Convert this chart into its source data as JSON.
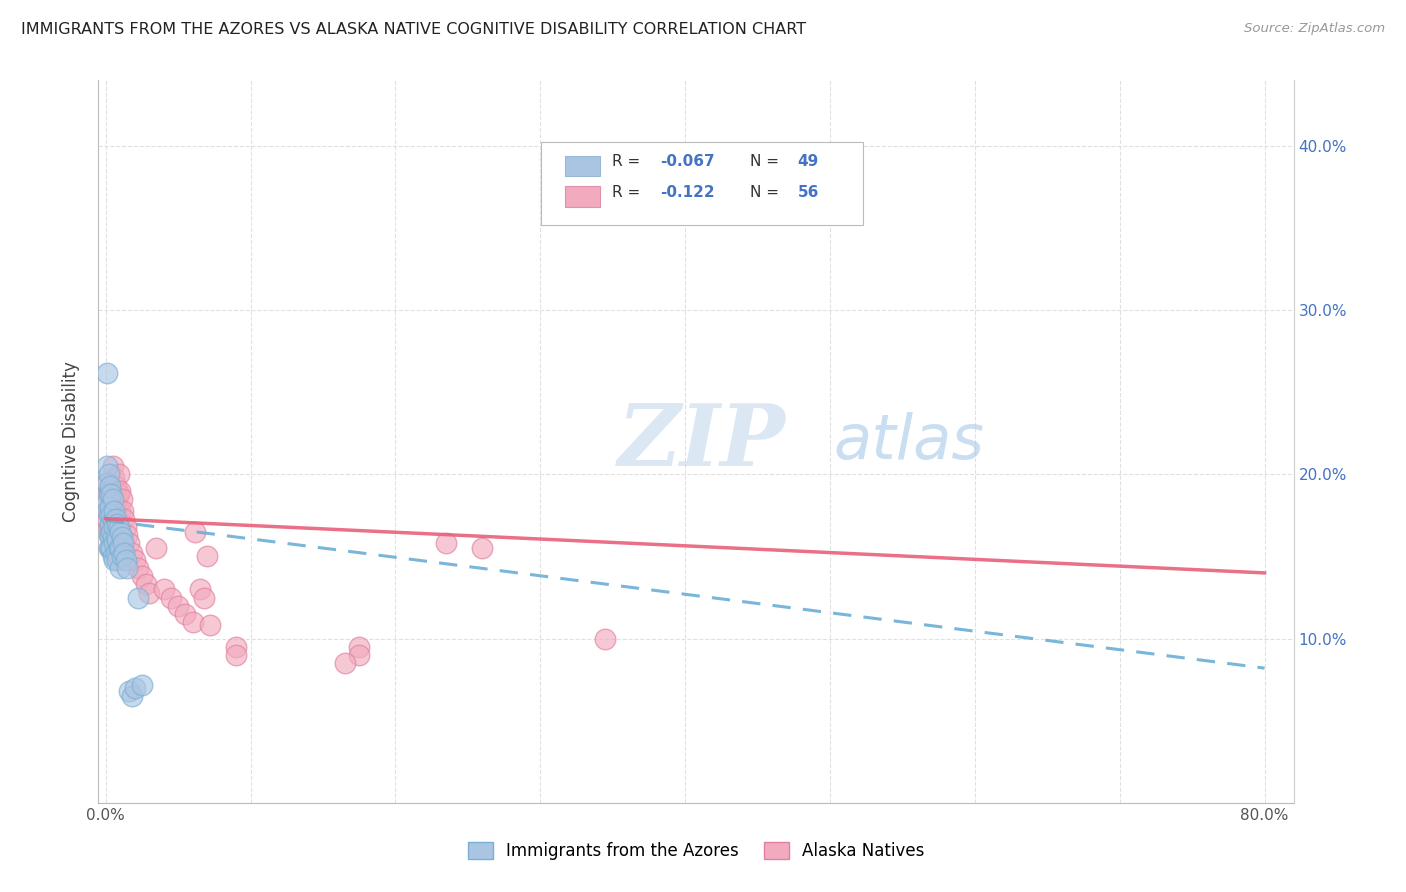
{
  "title": "IMMIGRANTS FROM THE AZORES VS ALASKA NATIVE COGNITIVE DISABILITY CORRELATION CHART",
  "source": "Source: ZipAtlas.com",
  "xlabel": "",
  "ylabel": "Cognitive Disability",
  "xlim": [
    -0.005,
    0.82
  ],
  "ylim": [
    0.0,
    0.44
  ],
  "xticks": [
    0.0,
    0.1,
    0.2,
    0.3,
    0.4,
    0.5,
    0.6,
    0.7,
    0.8
  ],
  "xticklabels": [
    "0.0%",
    "",
    "",
    "",
    "",
    "",
    "",
    "",
    "80.0%"
  ],
  "yticks": [
    0.0,
    0.1,
    0.2,
    0.3,
    0.4
  ],
  "yticklabels": [
    "",
    "",
    "",
    "",
    ""
  ],
  "right_yticks": [
    0.1,
    0.2,
    0.3,
    0.4
  ],
  "right_yticklabels": [
    "10.0%",
    "20.0%",
    "30.0%",
    "40.0%"
  ],
  "series1_color": "#aac5e2",
  "series2_color": "#f2abbe",
  "series1_edge": "#7aafd4",
  "series2_edge": "#e080a0",
  "trend1_color": "#6baed6",
  "trend2_color": "#e8607a",
  "watermark_zip": "ZIP",
  "watermark_atlas": "atlas",
  "watermark_zip_color": "#c5d8ee",
  "watermark_atlas_color": "#a8c8e8",
  "series1_label": "Immigrants from the Azores",
  "series2_label": "Alaska Natives",
  "legend_color": "#4472c4",
  "blue_scatter_x": [
    0.001,
    0.001,
    0.001,
    0.001,
    0.001,
    0.002,
    0.002,
    0.002,
    0.002,
    0.002,
    0.003,
    0.003,
    0.003,
    0.003,
    0.003,
    0.004,
    0.004,
    0.004,
    0.004,
    0.005,
    0.005,
    0.005,
    0.005,
    0.006,
    0.006,
    0.006,
    0.006,
    0.007,
    0.007,
    0.007,
    0.008,
    0.008,
    0.008,
    0.009,
    0.009,
    0.01,
    0.01,
    0.01,
    0.011,
    0.011,
    0.012,
    0.013,
    0.014,
    0.015,
    0.016,
    0.018,
    0.02,
    0.022,
    0.025
  ],
  "blue_scatter_y": [
    0.262,
    0.205,
    0.195,
    0.183,
    0.178,
    0.2,
    0.188,
    0.175,
    0.163,
    0.155,
    0.193,
    0.18,
    0.17,
    0.162,
    0.155,
    0.188,
    0.175,
    0.165,
    0.155,
    0.185,
    0.172,
    0.162,
    0.15,
    0.178,
    0.168,
    0.158,
    0.148,
    0.173,
    0.162,
    0.152,
    0.17,
    0.16,
    0.148,
    0.168,
    0.155,
    0.165,
    0.155,
    0.143,
    0.162,
    0.15,
    0.158,
    0.152,
    0.148,
    0.143,
    0.068,
    0.065,
    0.07,
    0.125,
    0.072
  ],
  "pink_scatter_x": [
    0.001,
    0.001,
    0.001,
    0.002,
    0.002,
    0.002,
    0.003,
    0.003,
    0.003,
    0.004,
    0.004,
    0.004,
    0.005,
    0.005,
    0.005,
    0.006,
    0.006,
    0.007,
    0.007,
    0.008,
    0.008,
    0.009,
    0.009,
    0.01,
    0.01,
    0.011,
    0.012,
    0.013,
    0.014,
    0.015,
    0.016,
    0.018,
    0.02,
    0.022,
    0.025,
    0.028,
    0.03,
    0.035,
    0.04,
    0.045,
    0.05,
    0.055,
    0.06,
    0.062,
    0.065,
    0.068,
    0.07,
    0.072,
    0.345,
    0.175,
    0.235,
    0.26,
    0.175,
    0.165,
    0.09,
    0.09
  ],
  "pink_scatter_y": [
    0.195,
    0.182,
    0.173,
    0.19,
    0.178,
    0.168,
    0.188,
    0.175,
    0.165,
    0.183,
    0.17,
    0.162,
    0.205,
    0.175,
    0.165,
    0.198,
    0.183,
    0.193,
    0.18,
    0.185,
    0.173,
    0.2,
    0.188,
    0.19,
    0.178,
    0.185,
    0.178,
    0.173,
    0.168,
    0.163,
    0.158,
    0.152,
    0.148,
    0.143,
    0.138,
    0.133,
    0.128,
    0.155,
    0.13,
    0.125,
    0.12,
    0.115,
    0.11,
    0.165,
    0.13,
    0.125,
    0.15,
    0.108,
    0.1,
    0.095,
    0.158,
    0.155,
    0.09,
    0.085,
    0.095,
    0.09
  ],
  "blue_trend_x": [
    0.0,
    0.8
  ],
  "blue_trend_y": [
    0.172,
    0.082
  ],
  "pink_trend_x": [
    0.0,
    0.8
  ],
  "pink_trend_y": [
    0.173,
    0.14
  ]
}
